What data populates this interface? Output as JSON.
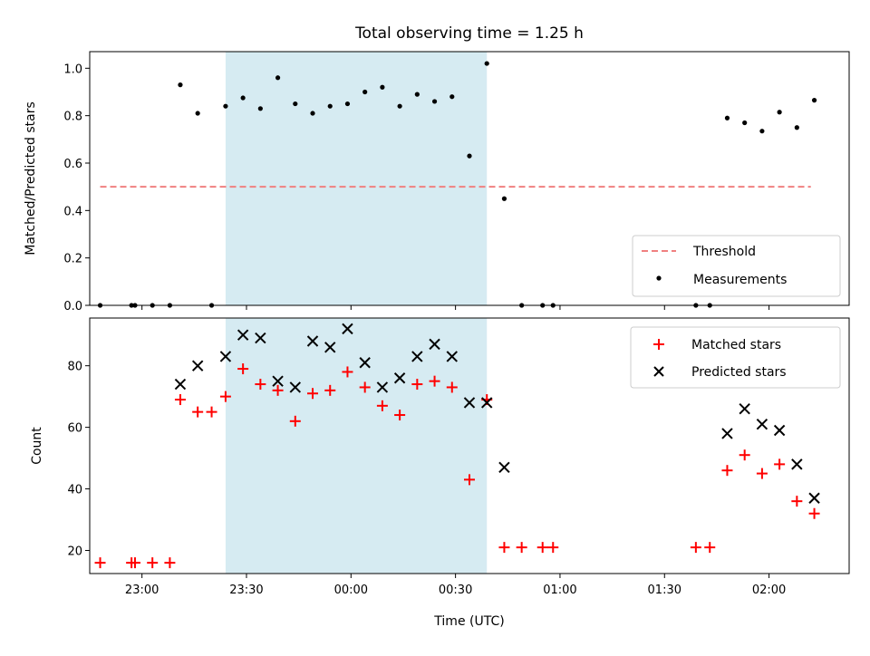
{
  "figure": {
    "title": "Total observing time = 1.25 h"
  },
  "chart_data": [
    {
      "type": "scatter",
      "panel": "top",
      "ylabel": "Matched/Predicted stars",
      "xlabel": "",
      "xlim": [
        "22:45",
        "02:23"
      ],
      "ylim": [
        0,
        1.07
      ],
      "yticks": [
        "0.0",
        "0.2",
        "0.4",
        "0.6",
        "0.8",
        "1.0"
      ],
      "shaded_span": {
        "start": "23:24",
        "end": "00:39",
        "color": "#add8e6"
      },
      "threshold": {
        "name": "Threshold",
        "value": 0.5,
        "x_start": "22:48",
        "x_end": "02:12",
        "color": "#f08080"
      },
      "series": [
        {
          "name": "Measurements",
          "color": "#000000",
          "marker": "dot",
          "points": [
            [
              "22:48",
              0.0
            ],
            [
              "22:57",
              0.0
            ],
            [
              "22:58",
              0.0
            ],
            [
              "23:03",
              0.0
            ],
            [
              "23:08",
              0.0
            ],
            [
              "23:11",
              0.93
            ],
            [
              "23:16",
              0.81
            ],
            [
              "23:20",
              0.0
            ],
            [
              "23:24",
              0.84
            ],
            [
              "23:29",
              0.875
            ],
            [
              "23:34",
              0.83
            ],
            [
              "23:39",
              0.96
            ],
            [
              "23:44",
              0.85
            ],
            [
              "23:49",
              0.81
            ],
            [
              "23:54",
              0.84
            ],
            [
              "23:59",
              0.85
            ],
            [
              "00:04",
              0.9
            ],
            [
              "00:09",
              0.92
            ],
            [
              "00:14",
              0.84
            ],
            [
              "00:19",
              0.89
            ],
            [
              "00:24",
              0.86
            ],
            [
              "00:29",
              0.88
            ],
            [
              "00:34",
              0.63
            ],
            [
              "00:39",
              1.02
            ],
            [
              "00:44",
              0.45
            ],
            [
              "00:49",
              0.0
            ],
            [
              "00:55",
              0.0
            ],
            [
              "00:58",
              0.0
            ],
            [
              "01:39",
              0.0
            ],
            [
              "01:43",
              0.0
            ],
            [
              "01:48",
              0.79
            ],
            [
              "01:53",
              0.77
            ],
            [
              "01:58",
              0.735
            ],
            [
              "02:03",
              0.815
            ],
            [
              "02:08",
              0.75
            ],
            [
              "02:13",
              0.865
            ]
          ]
        }
      ],
      "legend": {
        "placement": "lower right",
        "entries": [
          "Threshold",
          "Measurements"
        ]
      }
    },
    {
      "type": "scatter",
      "panel": "bottom",
      "ylabel": "Count",
      "xlabel": "Time (UTC)",
      "xlim": [
        "22:45",
        "02:23"
      ],
      "ylim": [
        12.5,
        95.5
      ],
      "yticks": [
        "20",
        "40",
        "60",
        "80"
      ],
      "xticks": [
        "23:00",
        "23:30",
        "00:00",
        "00:30",
        "01:00",
        "01:30",
        "02:00"
      ],
      "shaded_span": {
        "start": "23:24",
        "end": "00:39",
        "color": "#add8e6"
      },
      "series": [
        {
          "name": "Matched stars",
          "color": "#ff0000",
          "marker": "plus",
          "points": [
            [
              "22:48",
              16
            ],
            [
              "22:57",
              16
            ],
            [
              "22:58",
              16
            ],
            [
              "23:03",
              16
            ],
            [
              "23:08",
              16
            ],
            [
              "23:11",
              69
            ],
            [
              "23:16",
              65
            ],
            [
              "23:20",
              65
            ],
            [
              "23:24",
              70
            ],
            [
              "23:29",
              79
            ],
            [
              "23:34",
              74
            ],
            [
              "23:39",
              72
            ],
            [
              "23:44",
              62
            ],
            [
              "23:49",
              71
            ],
            [
              "23:54",
              72
            ],
            [
              "23:59",
              78
            ],
            [
              "00:04",
              73
            ],
            [
              "00:09",
              67
            ],
            [
              "00:14",
              64
            ],
            [
              "00:19",
              74
            ],
            [
              "00:24",
              75
            ],
            [
              "00:29",
              73
            ],
            [
              "00:34",
              43
            ],
            [
              "00:39",
              69
            ],
            [
              "00:44",
              21
            ],
            [
              "00:49",
              21
            ],
            [
              "00:55",
              21
            ],
            [
              "00:58",
              21
            ],
            [
              "01:39",
              21
            ],
            [
              "01:43",
              21
            ],
            [
              "01:48",
              46
            ],
            [
              "01:53",
              51
            ],
            [
              "01:58",
              45
            ],
            [
              "02:03",
              48
            ],
            [
              "02:08",
              36
            ],
            [
              "02:13",
              32
            ]
          ]
        },
        {
          "name": "Predicted stars",
          "color": "#000000",
          "marker": "x",
          "points": [
            [
              "23:11",
              74
            ],
            [
              "23:16",
              80
            ],
            [
              "23:24",
              83
            ],
            [
              "23:29",
              90
            ],
            [
              "23:34",
              89
            ],
            [
              "23:39",
              75
            ],
            [
              "23:44",
              73
            ],
            [
              "23:49",
              88
            ],
            [
              "23:54",
              86
            ],
            [
              "23:59",
              92
            ],
            [
              "00:04",
              81
            ],
            [
              "00:09",
              73
            ],
            [
              "00:14",
              76
            ],
            [
              "00:19",
              83
            ],
            [
              "00:24",
              87
            ],
            [
              "00:29",
              83
            ],
            [
              "00:34",
              68
            ],
            [
              "00:39",
              68
            ],
            [
              "00:44",
              47
            ],
            [
              "01:48",
              58
            ],
            [
              "01:53",
              66
            ],
            [
              "01:58",
              61
            ],
            [
              "02:03",
              59
            ],
            [
              "02:08",
              48
            ],
            [
              "02:13",
              37
            ]
          ]
        }
      ],
      "legend": {
        "placement": "upper right",
        "entries": [
          "Matched stars",
          "Predicted stars"
        ]
      }
    }
  ]
}
